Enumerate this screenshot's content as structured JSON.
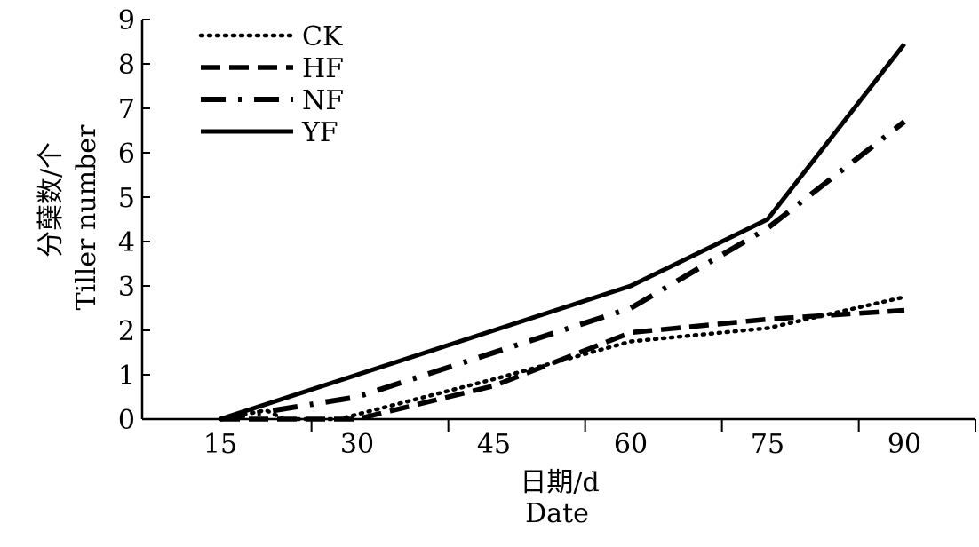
{
  "chart_data": {
    "type": "line",
    "x": [
      15,
      30,
      45,
      60,
      75,
      90
    ],
    "x_tick_labels": [
      "15",
      "30",
      "45",
      "60",
      "75",
      "90"
    ],
    "ylim": [
      0,
      9
    ],
    "y_tick_labels": [
      "0",
      "1",
      "2",
      "3",
      "4",
      "5",
      "6",
      "7",
      "8",
      "9"
    ],
    "xlabel": "日期/d",
    "xlabel_en": "Date",
    "ylabel": "分蘖数/个",
    "ylabel_en": "Tiller number",
    "legend_position": "top-left",
    "grid": false,
    "series": [
      {
        "name": "CK",
        "style": "dotted",
        "points": [
          [
            15,
            0
          ],
          [
            20,
            0.2
          ],
          [
            22,
            0
          ],
          [
            28,
            0
          ],
          [
            45,
            0.9
          ],
          [
            60,
            1.75
          ],
          [
            75,
            2.05
          ],
          [
            90,
            2.75
          ]
        ]
      },
      {
        "name": "HF",
        "style": "dashed",
        "points": [
          [
            15,
            0
          ],
          [
            30,
            0
          ],
          [
            45,
            0.75
          ],
          [
            60,
            1.95
          ],
          [
            75,
            2.25
          ],
          [
            90,
            2.45
          ]
        ]
      },
      {
        "name": "NF",
        "style": "dash-dot",
        "points": [
          [
            15,
            0
          ],
          [
            30,
            0.5
          ],
          [
            45,
            1.5
          ],
          [
            60,
            2.5
          ],
          [
            75,
            4.3
          ],
          [
            90,
            6.7
          ]
        ]
      },
      {
        "name": "YF",
        "style": "solid",
        "points": [
          [
            15,
            0
          ],
          [
            30,
            1.0
          ],
          [
            45,
            2.0
          ],
          [
            60,
            3.0
          ],
          [
            75,
            4.5
          ],
          [
            90,
            8.45
          ]
        ]
      }
    ]
  }
}
